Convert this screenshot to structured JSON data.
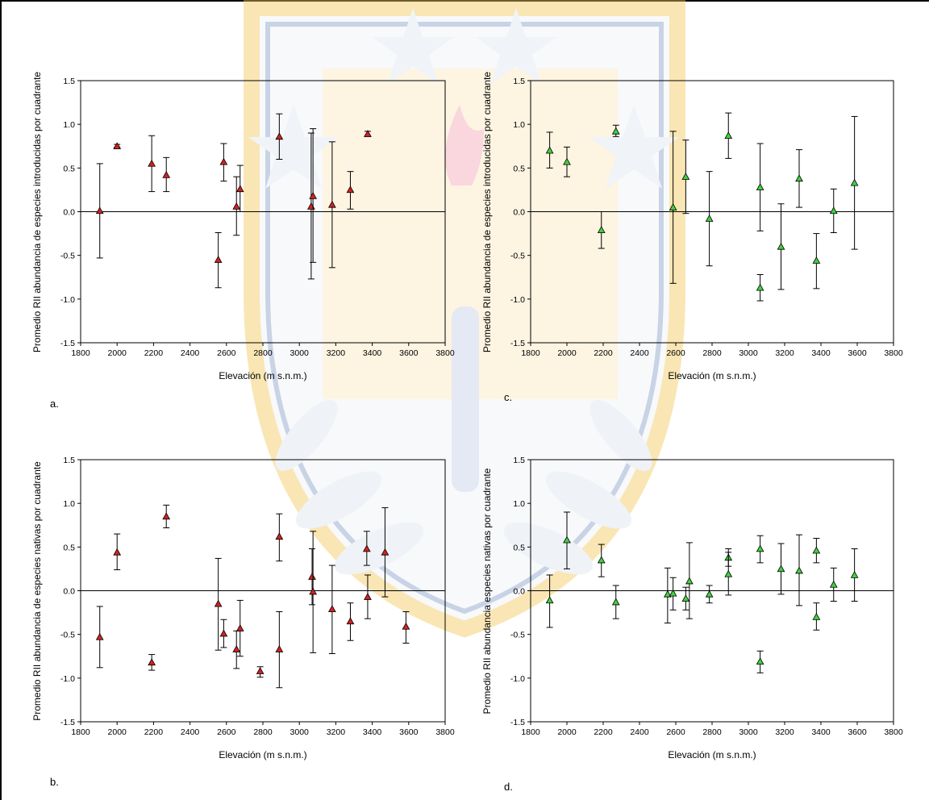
{
  "colors": {
    "red": "#d42020",
    "green": "#3fd23f",
    "marker_stroke": "#000000"
  },
  "chart_data": [
    {
      "type": "scatter",
      "panel_label": "a.",
      "xlabel": "Elevación (m s.n.m.)",
      "ylabel": "Promedio RII abundancia de especies introducidas por cuadrante",
      "xlim": [
        1800,
        3800
      ],
      "ylim": [
        -1.5,
        1.5
      ],
      "xticks": [
        "1800",
        "2000",
        "2200",
        "2400",
        "2600",
        "2800",
        "3000",
        "3200",
        "3400",
        "3600",
        "3800"
      ],
      "yticks": [
        "-1.5",
        "-1.0",
        "-0.5",
        "0.0",
        "0.5",
        "1.0",
        "1.5"
      ],
      "marker_color": "red",
      "points": [
        {
          "x": 1905,
          "y": 0.01,
          "low": -0.53,
          "high": 0.55
        },
        {
          "x": 2000,
          "y": 0.75,
          "low": 0.74,
          "high": 0.77
        },
        {
          "x": 2190,
          "y": 0.55,
          "low": 0.23,
          "high": 0.87
        },
        {
          "x": 2270,
          "y": 0.42,
          "low": 0.23,
          "high": 0.62
        },
        {
          "x": 2555,
          "y": -0.55,
          "low": -0.87,
          "high": -0.24
        },
        {
          "x": 2585,
          "y": 0.57,
          "low": 0.35,
          "high": 0.78
        },
        {
          "x": 2655,
          "y": 0.06,
          "low": -0.27,
          "high": 0.4
        },
        {
          "x": 2675,
          "y": 0.26,
          "low": 0.0,
          "high": 0.53
        },
        {
          "x": 2890,
          "y": 0.86,
          "low": 0.6,
          "high": 1.12
        },
        {
          "x": 3065,
          "y": 0.06,
          "low": -0.77,
          "high": 0.9
        },
        {
          "x": 3075,
          "y": 0.18,
          "low": -0.58,
          "high": 0.95
        },
        {
          "x": 3180,
          "y": 0.08,
          "low": -0.64,
          "high": 0.8
        },
        {
          "x": 3280,
          "y": 0.25,
          "low": 0.03,
          "high": 0.46
        },
        {
          "x": 3375,
          "y": 0.89,
          "low": 0.87,
          "high": 0.92
        }
      ]
    },
    {
      "type": "scatter",
      "panel_label": "b.",
      "xlabel": "Elevación (m s.n.m.)",
      "ylabel": "Promedio RII abundancia de especies nativas por cuadrante",
      "xlim": [
        1800,
        3800
      ],
      "ylim": [
        -1.5,
        1.5
      ],
      "xticks": [
        "1800",
        "2000",
        "2200",
        "2400",
        "2600",
        "2800",
        "3000",
        "3200",
        "3400",
        "3600",
        "3800"
      ],
      "yticks": [
        "-1.5",
        "-1.0",
        "-0.5",
        "0.0",
        "0.5",
        "1.0",
        "1.5"
      ],
      "marker_color": "red",
      "points": [
        {
          "x": 1905,
          "y": -0.53,
          "low": -0.88,
          "high": -0.18
        },
        {
          "x": 2000,
          "y": 0.44,
          "low": 0.24,
          "high": 0.65
        },
        {
          "x": 2190,
          "y": -0.82,
          "low": -0.91,
          "high": -0.73
        },
        {
          "x": 2270,
          "y": 0.85,
          "low": 0.72,
          "high": 0.98
        },
        {
          "x": 2555,
          "y": -0.15,
          "low": -0.68,
          "high": 0.37
        },
        {
          "x": 2585,
          "y": -0.49,
          "low": -0.65,
          "high": -0.33
        },
        {
          "x": 2655,
          "y": -0.67,
          "low": -0.89,
          "high": -0.46
        },
        {
          "x": 2675,
          "y": -0.43,
          "low": -0.75,
          "high": -0.11
        },
        {
          "x": 2785,
          "y": -0.92,
          "low": -0.99,
          "high": -0.87
        },
        {
          "x": 2890,
          "y": 0.62,
          "low": 0.34,
          "high": 0.88
        },
        {
          "x": 2890,
          "y": -0.67,
          "low": -1.11,
          "high": -0.24
        },
        {
          "x": 3070,
          "y": 0.16,
          "low": -0.16,
          "high": 0.48
        },
        {
          "x": 3075,
          "y": -0.01,
          "low": -0.71,
          "high": 0.68
        },
        {
          "x": 3180,
          "y": -0.21,
          "low": -0.72,
          "high": 0.29
        },
        {
          "x": 3280,
          "y": -0.35,
          "low": -0.57,
          "high": -0.14
        },
        {
          "x": 3370,
          "y": 0.48,
          "low": 0.29,
          "high": 0.68
        },
        {
          "x": 3375,
          "y": -0.07,
          "low": -0.32,
          "high": 0.18
        },
        {
          "x": 3470,
          "y": 0.44,
          "low": -0.07,
          "high": 0.95
        },
        {
          "x": 3585,
          "y": -0.41,
          "low": -0.6,
          "high": -0.24
        }
      ]
    },
    {
      "type": "scatter",
      "panel_label": "c.",
      "xlabel": "Elevación (m s.n.m.)",
      "ylabel": "Promedio RII abundancia de especies introducidas por cuadrante",
      "xlim": [
        1800,
        3800
      ],
      "ylim": [
        -1.5,
        1.5
      ],
      "xticks": [
        "1800",
        "2000",
        "2200",
        "2400",
        "2600",
        "2800",
        "3000",
        "3200",
        "3400",
        "3600",
        "3800"
      ],
      "yticks": [
        "-1.5",
        "-1.0",
        "-0.5",
        "0.0",
        "0.5",
        "1.0",
        "1.5"
      ],
      "marker_color": "green",
      "points": [
        {
          "x": 1905,
          "y": 0.7,
          "low": 0.5,
          "high": 0.91
        },
        {
          "x": 2000,
          "y": 0.57,
          "low": 0.4,
          "high": 0.74
        },
        {
          "x": 2190,
          "y": -0.21,
          "low": -0.42,
          "high": 0.0
        },
        {
          "x": 2270,
          "y": 0.92,
          "low": 0.86,
          "high": 0.99
        },
        {
          "x": 2585,
          "y": 0.05,
          "low": -0.82,
          "high": 0.92
        },
        {
          "x": 2655,
          "y": 0.4,
          "low": -0.02,
          "high": 0.82
        },
        {
          "x": 2785,
          "y": -0.08,
          "low": -0.62,
          "high": 0.46
        },
        {
          "x": 2890,
          "y": 0.87,
          "low": 0.61,
          "high": 1.13
        },
        {
          "x": 3065,
          "y": 0.28,
          "low": -0.22,
          "high": 0.78
        },
        {
          "x": 3065,
          "y": -0.87,
          "low": -1.02,
          "high": -0.72
        },
        {
          "x": 3180,
          "y": -0.4,
          "low": -0.89,
          "high": 0.09
        },
        {
          "x": 3280,
          "y": 0.38,
          "low": 0.05,
          "high": 0.71
        },
        {
          "x": 3375,
          "y": -0.56,
          "low": -0.88,
          "high": -0.25
        },
        {
          "x": 3470,
          "y": 0.01,
          "low": -0.24,
          "high": 0.26
        },
        {
          "x": 3585,
          "y": 0.33,
          "low": -0.43,
          "high": 1.09
        }
      ]
    },
    {
      "type": "scatter",
      "panel_label": "d.",
      "xlabel": "Elevación (m s.n.m.)",
      "ylabel": "Promedio RII abundancia especies nativas por cuadrante",
      "xlim": [
        1800,
        3800
      ],
      "ylim": [
        -1.5,
        1.5
      ],
      "xticks": [
        "1800",
        "2000",
        "2200",
        "2400",
        "2600",
        "2800",
        "3000",
        "3200",
        "3400",
        "3600",
        "3800"
      ],
      "yticks": [
        "-1.5",
        "-1.0",
        "-0.5",
        "0.0",
        "0.5",
        "1.0",
        "1.5"
      ],
      "marker_color": "green",
      "points": [
        {
          "x": 1905,
          "y": -0.11,
          "low": -0.42,
          "high": 0.18
        },
        {
          "x": 2000,
          "y": 0.58,
          "low": 0.25,
          "high": 0.9
        },
        {
          "x": 2190,
          "y": 0.35,
          "low": 0.16,
          "high": 0.53
        },
        {
          "x": 2270,
          "y": -0.13,
          "low": -0.32,
          "high": 0.06
        },
        {
          "x": 2555,
          "y": -0.04,
          "low": -0.37,
          "high": 0.26
        },
        {
          "x": 2585,
          "y": -0.03,
          "low": -0.22,
          "high": 0.15
        },
        {
          "x": 2655,
          "y": -0.09,
          "low": -0.22,
          "high": 0.04
        },
        {
          "x": 2675,
          "y": 0.11,
          "low": -0.32,
          "high": 0.55
        },
        {
          "x": 2785,
          "y": -0.04,
          "low": -0.14,
          "high": 0.06
        },
        {
          "x": 2890,
          "y": 0.38,
          "low": 0.28,
          "high": 0.48
        },
        {
          "x": 2890,
          "y": 0.19,
          "low": -0.05,
          "high": 0.44
        },
        {
          "x": 3065,
          "y": 0.48,
          "low": 0.32,
          "high": 0.63
        },
        {
          "x": 3065,
          "y": -0.81,
          "low": -0.94,
          "high": -0.69
        },
        {
          "x": 3180,
          "y": 0.25,
          "low": -0.04,
          "high": 0.54
        },
        {
          "x": 3280,
          "y": 0.23,
          "low": -0.17,
          "high": 0.64
        },
        {
          "x": 3375,
          "y": 0.46,
          "low": 0.32,
          "high": 0.6
        },
        {
          "x": 3375,
          "y": -0.3,
          "low": -0.45,
          "high": -0.14
        },
        {
          "x": 3470,
          "y": 0.07,
          "low": -0.12,
          "high": 0.26
        },
        {
          "x": 3585,
          "y": 0.18,
          "low": -0.12,
          "high": 0.48
        }
      ]
    }
  ]
}
